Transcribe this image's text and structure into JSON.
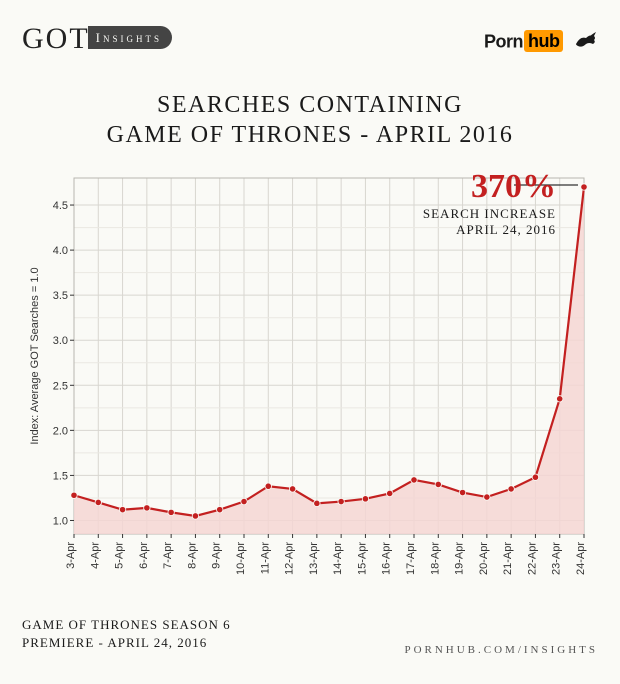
{
  "logos": {
    "got_main": "GOT",
    "got_sub": "Insights",
    "ph_porn": "Porn",
    "ph_hub": "hub"
  },
  "title": {
    "line1": "Searches Containing",
    "line2": "Game of Thrones - April 2016"
  },
  "callout": {
    "pct": "370%",
    "line1": "SEARCH INCREASE",
    "line2": "APRIL 24, 2016"
  },
  "footer": {
    "left_line1": "Game of Thrones Season 6",
    "left_line2": "Premiere - April 24, 2016",
    "right": "pornhub.com/insights"
  },
  "chart": {
    "type": "area-line",
    "y_axis_label": "Index: Average GOT Searches = 1.0",
    "ylim": [
      0.85,
      4.8
    ],
    "yticks": [
      1.0,
      1.5,
      2.0,
      2.5,
      3.0,
      3.5,
      4.0,
      4.5
    ],
    "categories": [
      "3-Apr",
      "4-Apr",
      "5-Apr",
      "6-Apr",
      "7-Apr",
      "8-Apr",
      "9-Apr",
      "10-Apr",
      "11-Apr",
      "12-Apr",
      "13-Apr",
      "14-Apr",
      "15-Apr",
      "16-Apr",
      "17-Apr",
      "18-Apr",
      "19-Apr",
      "20-Apr",
      "21-Apr",
      "22-Apr",
      "23-Apr",
      "24-Apr"
    ],
    "values": [
      1.28,
      1.2,
      1.12,
      1.14,
      1.09,
      1.05,
      1.12,
      1.21,
      1.38,
      1.35,
      1.19,
      1.21,
      1.24,
      1.3,
      1.45,
      1.4,
      1.31,
      1.26,
      1.35,
      1.48,
      2.35,
      4.7
    ],
    "line_color": "#c32020",
    "area_color": "#f5d6d4",
    "marker_radius": 3.2,
    "background_color": "#fafaf6",
    "grid_color": "#d8d6d0",
    "title_fontsize": 24,
    "axis_fontsize": 11,
    "callout_pct_fontsize": 34,
    "callout_pct_color": "#c32020"
  }
}
